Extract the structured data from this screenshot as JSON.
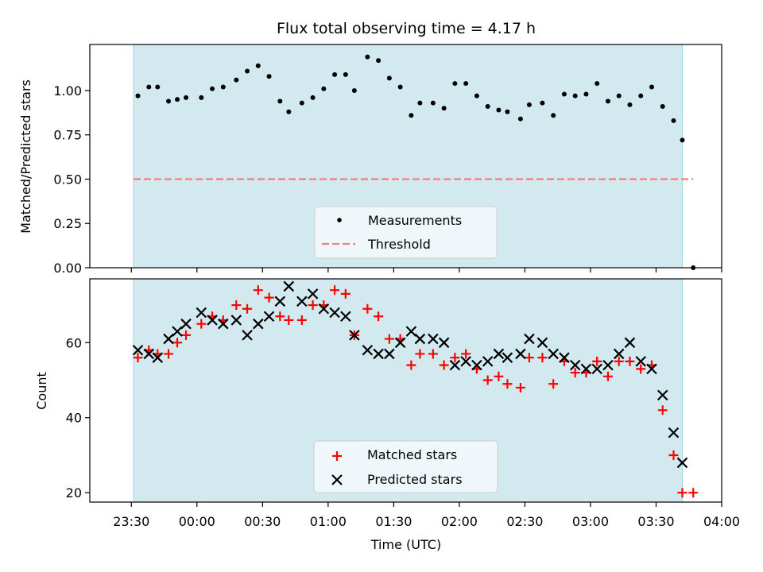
{
  "chart_data": [
    {
      "type": "scatter",
      "title": "Flux total observing time = 4.17 h",
      "xlabel": "",
      "ylabel": "Matched/Predicted stars",
      "xlim": [
        "23:11",
        "04:00"
      ],
      "ylim": [
        0,
        1.26
      ],
      "yticks": [
        0.0,
        0.25,
        0.5,
        0.75,
        1.0
      ],
      "ytick_labels": [
        "0.00",
        "0.25",
        "0.50",
        "0.75",
        "1.00"
      ],
      "observing_window": [
        "23:31",
        "03:42"
      ],
      "observing_window_color": "#d3e9f0",
      "legend": {
        "placement": "lower-center",
        "entries": [
          "Measurements",
          "Threshold"
        ]
      },
      "series": [
        {
          "name": "Measurements",
          "marker": "dot",
          "color": "#000000",
          "x": [
            "23:33",
            "23:38",
            "23:42",
            "23:47",
            "23:51",
            "23:55",
            "00:02",
            "00:07",
            "00:12",
            "00:18",
            "00:23",
            "00:28",
            "00:33",
            "00:38",
            "00:42",
            "00:48",
            "00:53",
            "00:58",
            "01:03",
            "01:08",
            "01:12",
            "01:18",
            "01:23",
            "01:28",
            "01:33",
            "01:38",
            "01:42",
            "01:48",
            "01:53",
            "01:58",
            "02:03",
            "02:08",
            "02:13",
            "02:18",
            "02:22",
            "02:28",
            "02:32",
            "02:38",
            "02:43",
            "02:48",
            "02:53",
            "02:58",
            "03:03",
            "03:08",
            "03:13",
            "03:18",
            "03:23",
            "03:28",
            "03:33",
            "03:38",
            "03:42",
            "03:47"
          ],
          "y": [
            0.97,
            1.02,
            1.02,
            0.94,
            0.95,
            0.96,
            0.96,
            1.01,
            1.02,
            1.06,
            1.11,
            1.14,
            1.08,
            0.94,
            0.88,
            0.93,
            0.96,
            1.01,
            1.09,
            1.09,
            1.0,
            1.19,
            1.17,
            1.07,
            1.02,
            0.86,
            0.93,
            0.93,
            0.9,
            1.04,
            1.04,
            0.97,
            0.91,
            0.89,
            0.88,
            0.84,
            0.92,
            0.93,
            0.86,
            0.98,
            0.97,
            0.98,
            1.04,
            0.94,
            0.97,
            0.92,
            0.97,
            1.02,
            0.91,
            0.83,
            0.72,
            0.0
          ]
        },
        {
          "name": "Threshold",
          "style": "dashed",
          "color": "#f08080",
          "x": [
            "23:31",
            "03:47"
          ],
          "y": [
            0.5,
            0.5
          ]
        }
      ]
    },
    {
      "type": "scatter",
      "title": "",
      "xlabel": "Time (UTC)",
      "ylabel": "Count",
      "xlim": [
        "23:11",
        "04:00"
      ],
      "ylim": [
        17.5,
        77
      ],
      "xticks": [
        "23:30",
        "00:00",
        "00:30",
        "01:00",
        "01:30",
        "02:00",
        "02:30",
        "03:00",
        "03:30",
        "04:00"
      ],
      "yticks": [
        20,
        40,
        60
      ],
      "ytick_labels": [
        "20",
        "40",
        "60"
      ],
      "observing_window": [
        "23:31",
        "03:42"
      ],
      "observing_window_color": "#d3e9f0",
      "legend": {
        "placement": "lower-center",
        "entries": [
          "Matched stars",
          "Predicted stars"
        ]
      },
      "series": [
        {
          "name": "Matched stars",
          "marker": "plus",
          "color": "#ff0000",
          "x": [
            "23:33",
            "23:38",
            "23:42",
            "23:47",
            "23:51",
            "23:55",
            "00:02",
            "00:07",
            "00:12",
            "00:18",
            "00:23",
            "00:28",
            "00:33",
            "00:38",
            "00:42",
            "00:48",
            "00:53",
            "00:58",
            "01:03",
            "01:08",
            "01:12",
            "01:18",
            "01:23",
            "01:28",
            "01:33",
            "01:38",
            "01:42",
            "01:48",
            "01:53",
            "01:58",
            "02:03",
            "02:08",
            "02:13",
            "02:18",
            "02:22",
            "02:28",
            "02:32",
            "02:38",
            "02:43",
            "02:48",
            "02:53",
            "02:58",
            "03:03",
            "03:08",
            "03:13",
            "03:18",
            "03:23",
            "03:28",
            "03:33",
            "03:38",
            "03:42",
            "03:47"
          ],
          "y": [
            56,
            58,
            57,
            57,
            60,
            62,
            65,
            67,
            66,
            70,
            69,
            74,
            72,
            67,
            66,
            66,
            70,
            70,
            74,
            73,
            62,
            69,
            67,
            61,
            61,
            54,
            57,
            57,
            54,
            56,
            57,
            53,
            50,
            51,
            49,
            48,
            56,
            56,
            49,
            55,
            52,
            52,
            55,
            51,
            55,
            55,
            53,
            54,
            42,
            30,
            20,
            20
          ]
        },
        {
          "name": "Predicted stars",
          "marker": "x",
          "color": "#000000",
          "x": [
            "23:33",
            "23:38",
            "23:42",
            "23:47",
            "23:51",
            "23:55",
            "00:02",
            "00:07",
            "00:12",
            "00:18",
            "00:23",
            "00:28",
            "00:33",
            "00:38",
            "00:42",
            "00:48",
            "00:53",
            "00:58",
            "01:03",
            "01:08",
            "01:12",
            "01:18",
            "01:23",
            "01:28",
            "01:33",
            "01:38",
            "01:42",
            "01:48",
            "01:53",
            "01:58",
            "02:03",
            "02:08",
            "02:13",
            "02:18",
            "02:22",
            "02:28",
            "02:32",
            "02:38",
            "02:43",
            "02:48",
            "02:53",
            "02:58",
            "03:03",
            "03:08",
            "03:13",
            "03:18",
            "03:23",
            "03:28",
            "03:33",
            "03:38",
            "03:42"
          ],
          "y": [
            58,
            57,
            56,
            61,
            63,
            65,
            68,
            66,
            65,
            66,
            62,
            65,
            67,
            71,
            75,
            71,
            73,
            69,
            68,
            67,
            62,
            58,
            57,
            57,
            60,
            63,
            61,
            61,
            60,
            54,
            55,
            54,
            55,
            57,
            56,
            57,
            61,
            60,
            57,
            56,
            54,
            53,
            53,
            54,
            57,
            60,
            55,
            53,
            46,
            36,
            28
          ]
        }
      ]
    }
  ]
}
